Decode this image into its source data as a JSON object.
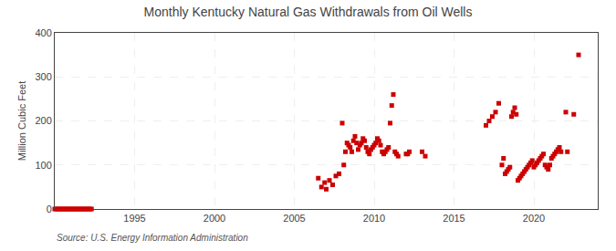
{
  "chart_data": {
    "type": "scatter",
    "title": "Monthly Kentucky Natural Gas Withdrawals from Oil Wells",
    "ylabel": "Million Cubic Feet",
    "annotations": [
      "Source: U.S. Energy Information Administration"
    ],
    "color": "#cc0000",
    "marker": "square",
    "grid": true,
    "xlim": [
      1990,
      2024
    ],
    "ylim": [
      0,
      400
    ],
    "xticks": [
      1995,
      2000,
      2005,
      2010,
      2015,
      2020
    ],
    "yticks": [
      0,
      100,
      200,
      300,
      400
    ],
    "x": [
      1990.0,
      1990.1,
      1990.2,
      1990.3,
      1990.4,
      1990.5,
      1990.6,
      1990.7,
      1990.8,
      1990.9,
      1991.0,
      1991.1,
      1991.2,
      1991.3,
      1991.4,
      1991.5,
      1991.6,
      1991.7,
      1991.8,
      1991.9,
      1992.0,
      1992.1,
      1992.2,
      1992.3,
      2006.5,
      2006.7,
      2006.9,
      2007.0,
      2007.2,
      2007.4,
      2007.6,
      2007.8,
      2008.0,
      2008.1,
      2008.2,
      2008.3,
      2008.4,
      2008.5,
      2008.6,
      2008.7,
      2008.8,
      2008.9,
      2009.0,
      2009.1,
      2009.2,
      2009.3,
      2009.4,
      2009.5,
      2009.6,
      2009.7,
      2009.8,
      2009.9,
      2010.0,
      2010.1,
      2010.2,
      2010.3,
      2010.4,
      2010.5,
      2010.6,
      2010.7,
      2010.8,
      2010.9,
      2011.0,
      2011.1,
      2011.2,
      2011.3,
      2011.4,
      2011.5,
      2012.0,
      2012.1,
      2012.2,
      2013.0,
      2013.2,
      2017.0,
      2017.2,
      2017.4,
      2017.6,
      2017.8,
      2018.0,
      2018.1,
      2018.2,
      2018.3,
      2018.4,
      2018.5,
      2018.6,
      2018.7,
      2018.8,
      2018.9,
      2019.0,
      2019.1,
      2019.2,
      2019.3,
      2019.4,
      2019.5,
      2019.6,
      2019.7,
      2019.8,
      2019.9,
      2020.0,
      2020.1,
      2020.2,
      2020.3,
      2020.4,
      2020.5,
      2020.6,
      2020.7,
      2020.8,
      2020.9,
      2021.0,
      2021.1,
      2021.2,
      2021.3,
      2021.4,
      2021.5,
      2021.6,
      2021.7,
      2022.0,
      2022.1,
      2022.5,
      2022.8
    ],
    "values": [
      0,
      0,
      0,
      0,
      0,
      0,
      0,
      0,
      0,
      0,
      0,
      0,
      0,
      0,
      0,
      0,
      0,
      0,
      0,
      0,
      0,
      0,
      0,
      0,
      70,
      50,
      60,
      45,
      65,
      55,
      75,
      80,
      195,
      100,
      130,
      150,
      145,
      140,
      130,
      155,
      165,
      150,
      135,
      145,
      150,
      160,
      155,
      140,
      130,
      125,
      135,
      140,
      145,
      150,
      160,
      155,
      145,
      130,
      125,
      130,
      135,
      140,
      195,
      235,
      260,
      130,
      125,
      120,
      125,
      125,
      130,
      130,
      120,
      190,
      200,
      210,
      220,
      240,
      100,
      115,
      80,
      85,
      90,
      95,
      210,
      220,
      230,
      215,
      65,
      70,
      75,
      80,
      85,
      90,
      95,
      100,
      105,
      110,
      95,
      100,
      105,
      110,
      115,
      120,
      125,
      100,
      95,
      90,
      100,
      115,
      120,
      125,
      130,
      135,
      140,
      130,
      220,
      130,
      215,
      350
    ]
  }
}
